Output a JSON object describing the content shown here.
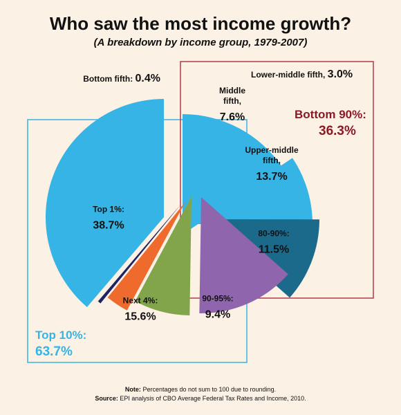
{
  "chart_data": {
    "type": "pie",
    "title": "Who saw the most income growth?",
    "subtitle": "(A breakdown by income group, 1979-2007)",
    "unit": "%",
    "slices": [
      {
        "label_lines": [
          "Top 1%:"
        ],
        "value": 38.7,
        "display": "38.7%",
        "color": "#36b4e5",
        "group": "top10"
      },
      {
        "label_lines": [
          "Next 4%:"
        ],
        "value": 15.6,
        "display": "15.6%",
        "color": "#36b4e5",
        "group": "top10"
      },
      {
        "label_lines": [
          "90-95%:"
        ],
        "value": 9.4,
        "display": "9.4%",
        "color": "#36b4e5",
        "group": "top10"
      },
      {
        "label_lines": [
          "80-90%:"
        ],
        "value": 11.5,
        "display": "11.5%",
        "color": "#1b6a8c",
        "group": "bottom90"
      },
      {
        "label_lines": [
          "Upper-middle",
          "fifth,"
        ],
        "value": 13.7,
        "display": "13.7%",
        "color": "#8f65ae",
        "group": "bottom90"
      },
      {
        "label_lines": [
          "Middle",
          "fifth,"
        ],
        "value": 7.6,
        "display": "7.6%",
        "color": "#82a54b",
        "group": "bottom90"
      },
      {
        "label_lines": [
          "Lower-middle fifth,"
        ],
        "value": 3.0,
        "display": "3.0%",
        "color": "#ee6b2d",
        "group": "bottom90"
      },
      {
        "label_lines": [
          "Bottom fifth:"
        ],
        "value": 0.4,
        "display": "0.4%",
        "color": "#1f2263",
        "group": "bottom90"
      }
    ],
    "groups": [
      {
        "id": "top10",
        "label": "Top 10%:",
        "display": "63.7%",
        "color": "#36b4e5"
      },
      {
        "id": "bottom90",
        "label": "Bottom 90%:",
        "display": "36.3%",
        "color": "#8b1a27"
      }
    ],
    "note_label": "Note:",
    "note_text": "Percentages do not sum to 100 due to rounding.",
    "source_label": "Source:",
    "source_text": "EPI analysis of CBO Average Federal Tax Rates and Income, 2010."
  },
  "colors": {
    "background": "#fbf1e4",
    "slice_gap": "#fbf1e4"
  }
}
